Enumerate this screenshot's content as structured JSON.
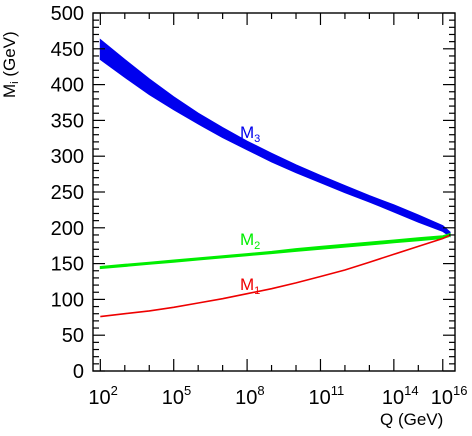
{
  "chart_data": {
    "type": "line",
    "xlabel": "Q (GeV)",
    "ylabel": "M",
    "ylabel_sub": "i",
    "ylabel_unit": " (GeV)",
    "x_scale": "log10",
    "xlim_exponent": [
      1.7,
      16.5
    ],
    "ylim": [
      0,
      500
    ],
    "grid": false,
    "x_tick_exponents": [
      2,
      5,
      8,
      11,
      14,
      16
    ],
    "x_ticks": [
      {
        "base": "10",
        "exp": "2"
      },
      {
        "base": "10",
        "exp": "5"
      },
      {
        "base": "10",
        "exp": "8"
      },
      {
        "base": "10",
        "exp": "11"
      },
      {
        "base": "10",
        "exp": "14"
      },
      {
        "base": "10",
        "exp": "16"
      }
    ],
    "y_ticks": [
      "0",
      "50",
      "100",
      "150",
      "200",
      "250",
      "300",
      "350",
      "400",
      "450",
      "500"
    ],
    "x_exponents": [
      2,
      3,
      4,
      5,
      6,
      7,
      8,
      9,
      10,
      11,
      12,
      13,
      14,
      15,
      16,
      16.3
    ],
    "series": [
      {
        "name": "M",
        "sub": "3",
        "color": "#0000ee",
        "band": true,
        "upper": [
          463,
          435,
          408,
          383,
          360,
          340,
          321,
          304,
          288,
          273,
          259,
          245,
          232,
          218,
          203,
          194
        ],
        "lower": [
          435,
          410,
          386,
          365,
          345,
          326,
          309,
          292,
          277,
          263,
          249,
          236,
          222,
          208,
          195,
          188
        ]
      },
      {
        "name": "M",
        "sub": "2",
        "color": "#00ee00",
        "band": true,
        "upper": [
          146,
          149,
          152,
          155,
          158,
          161,
          164,
          167,
          171,
          174,
          177,
          180,
          183,
          186,
          189,
          192
        ],
        "lower": [
          143,
          146,
          149,
          152,
          155,
          158,
          161,
          164,
          167,
          170,
          173,
          176,
          179,
          182,
          185,
          188
        ]
      },
      {
        "name": "M",
        "sub": "1",
        "color": "#ee0000",
        "band": false,
        "values": [
          76,
          80,
          84,
          89,
          95,
          101,
          108,
          115,
          123,
          132,
          141,
          152,
          163,
          174,
          185,
          190
        ]
      }
    ]
  }
}
